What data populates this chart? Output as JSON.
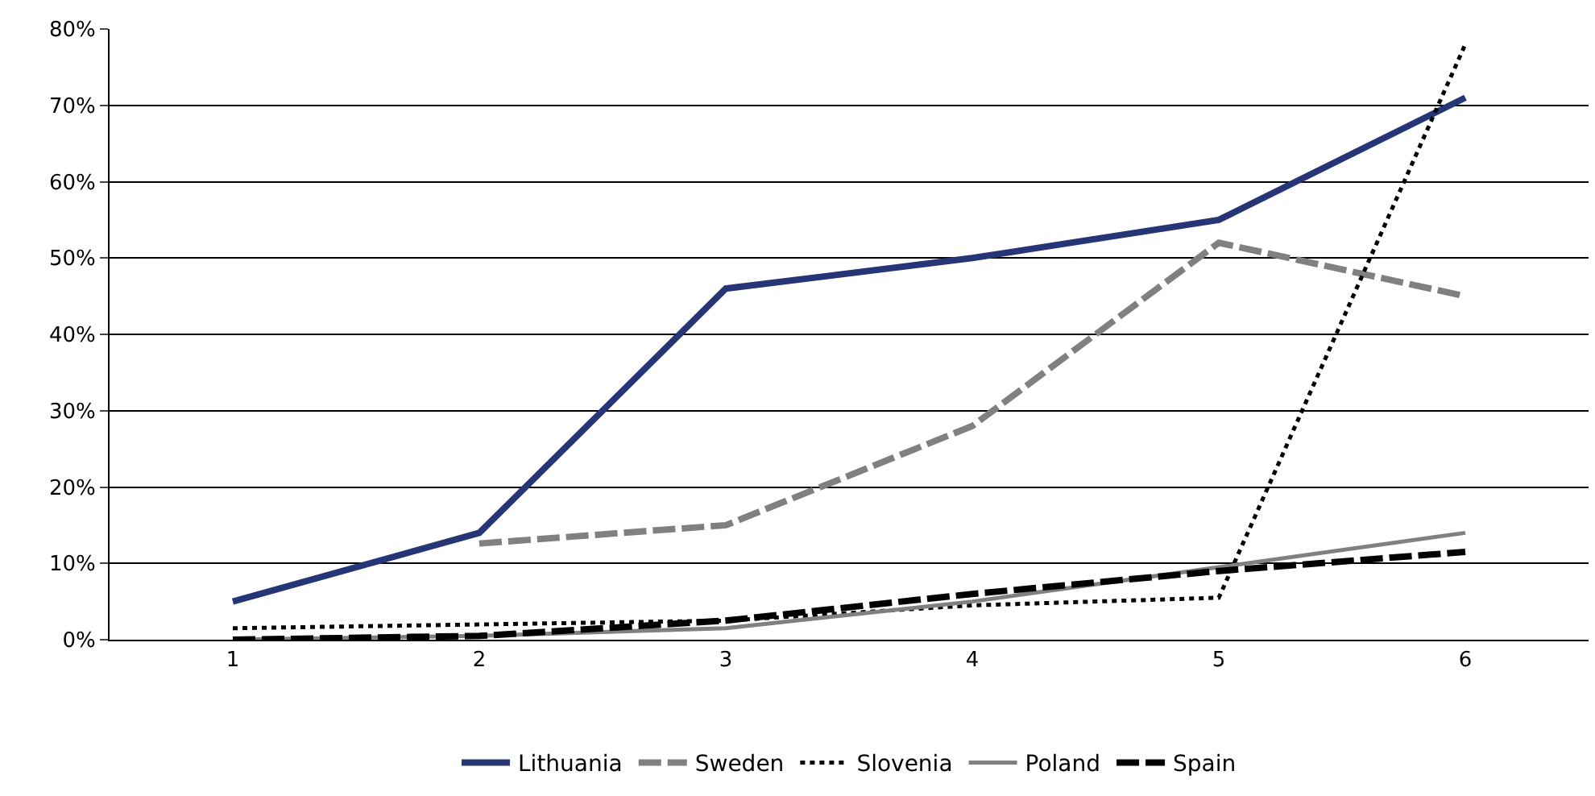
{
  "chart_data": {
    "type": "line",
    "categories": [
      "1",
      "2",
      "3",
      "4",
      "5",
      "6"
    ],
    "series": [
      {
        "name": "Lithuania",
        "color": "#263575",
        "line_style": "solid",
        "values": [
          5,
          14,
          46,
          50,
          55,
          71
        ]
      },
      {
        "name": "Sweden",
        "color": "#808080",
        "line_style": "dashed",
        "values": [
          null,
          12.6,
          15,
          28,
          52,
          45
        ]
      },
      {
        "name": "Slovenia",
        "color": "#000000",
        "line_style": "dotted",
        "values": [
          1.5,
          2,
          2.5,
          4.5,
          5.5,
          78
        ]
      },
      {
        "name": "Poland",
        "color": "#808080",
        "line_style": "solid",
        "values": [
          0,
          0.5,
          1.5,
          5,
          9.5,
          14
        ]
      },
      {
        "name": "Spain",
        "color": "#000000",
        "line_style": "dashed",
        "values": [
          0,
          0.5,
          2.5,
          6,
          9,
          11.5
        ]
      }
    ],
    "ylim": [
      0,
      80
    ],
    "yticks": [
      {
        "value": 0,
        "label": "0%"
      },
      {
        "value": 10,
        "label": "10%"
      },
      {
        "value": 20,
        "label": "20%"
      },
      {
        "value": 30,
        "label": "30%"
      },
      {
        "value": 40,
        "label": "40%"
      },
      {
        "value": 50,
        "label": "50%"
      },
      {
        "value": 60,
        "label": "60%"
      },
      {
        "value": 70,
        "label": "70%"
      },
      {
        "value": 80,
        "label": "80%"
      }
    ],
    "grid": "y",
    "legend": "bottom",
    "marker": "none"
  }
}
